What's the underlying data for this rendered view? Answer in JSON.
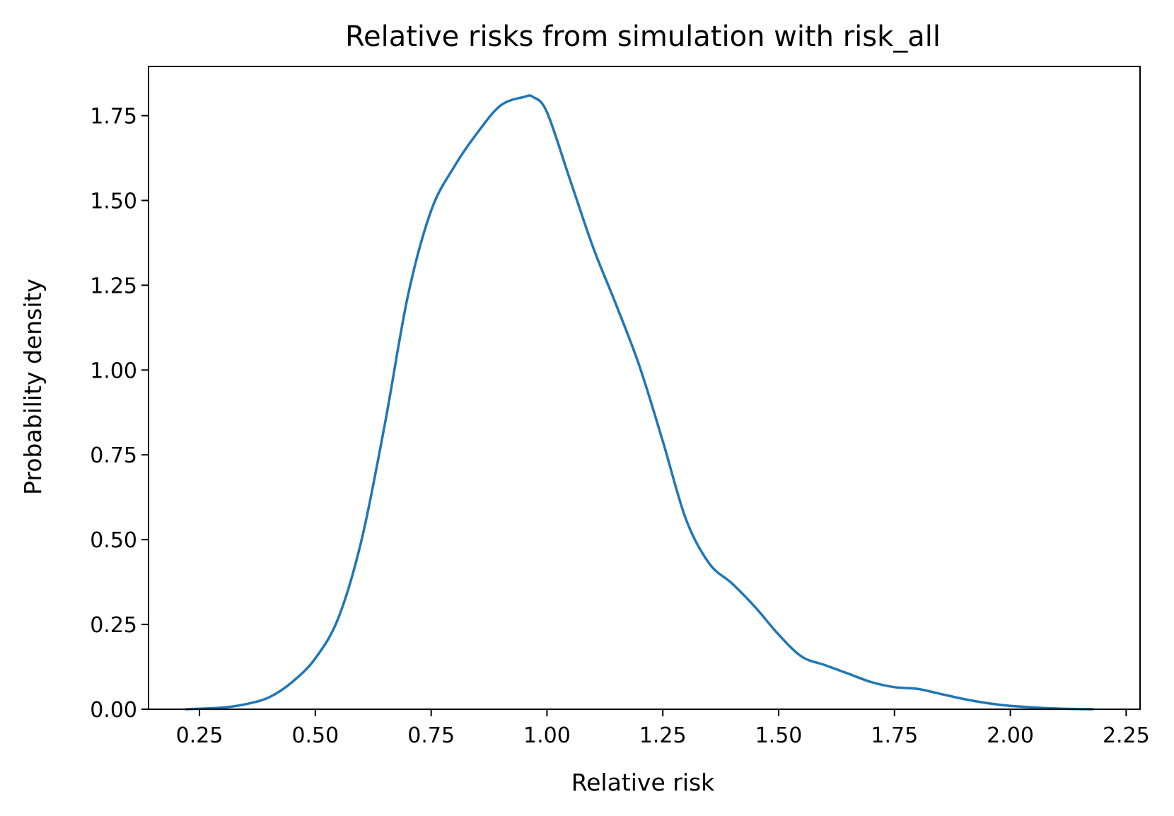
{
  "chart_data": {
    "type": "line",
    "title": "Relative risks from simulation with risk_all",
    "xlabel": "Relative risk",
    "ylabel": "Probability density",
    "xlim": [
      0.14,
      2.28
    ],
    "ylim": [
      0.0,
      1.895
    ],
    "xticks": [
      0.25,
      0.5,
      0.75,
      1.0,
      1.25,
      1.5,
      1.75,
      2.0,
      2.25
    ],
    "xtick_labels": [
      "0.25",
      "0.50",
      "0.75",
      "1.00",
      "1.25",
      "1.50",
      "1.75",
      "2.00",
      "2.25"
    ],
    "yticks": [
      0.0,
      0.25,
      0.5,
      0.75,
      1.0,
      1.25,
      1.5,
      1.75
    ],
    "ytick_labels": [
      "0.00",
      "0.25",
      "0.50",
      "0.75",
      "1.00",
      "1.25",
      "1.50",
      "1.75"
    ],
    "grid": false,
    "line_color": "#1f77b4",
    "series": [
      {
        "x": [
          0.22,
          0.3,
          0.35,
          0.4,
          0.45,
          0.5,
          0.55,
          0.6,
          0.65,
          0.7,
          0.75,
          0.8,
          0.85,
          0.9,
          0.95,
          0.97,
          1.0,
          1.05,
          1.1,
          1.15,
          1.2,
          1.25,
          1.3,
          1.35,
          1.4,
          1.45,
          1.5,
          1.55,
          1.6,
          1.65,
          1.7,
          1.75,
          1.8,
          1.85,
          1.9,
          1.95,
          2.0,
          2.1,
          2.18
        ],
        "y": [
          0.0,
          0.005,
          0.015,
          0.035,
          0.08,
          0.15,
          0.27,
          0.5,
          0.84,
          1.22,
          1.47,
          1.6,
          1.7,
          1.78,
          1.805,
          1.805,
          1.76,
          1.56,
          1.36,
          1.19,
          1.01,
          0.79,
          0.56,
          0.43,
          0.37,
          0.3,
          0.22,
          0.155,
          0.13,
          0.105,
          0.08,
          0.065,
          0.06,
          0.045,
          0.03,
          0.018,
          0.01,
          0.002,
          0.0
        ]
      }
    ]
  }
}
